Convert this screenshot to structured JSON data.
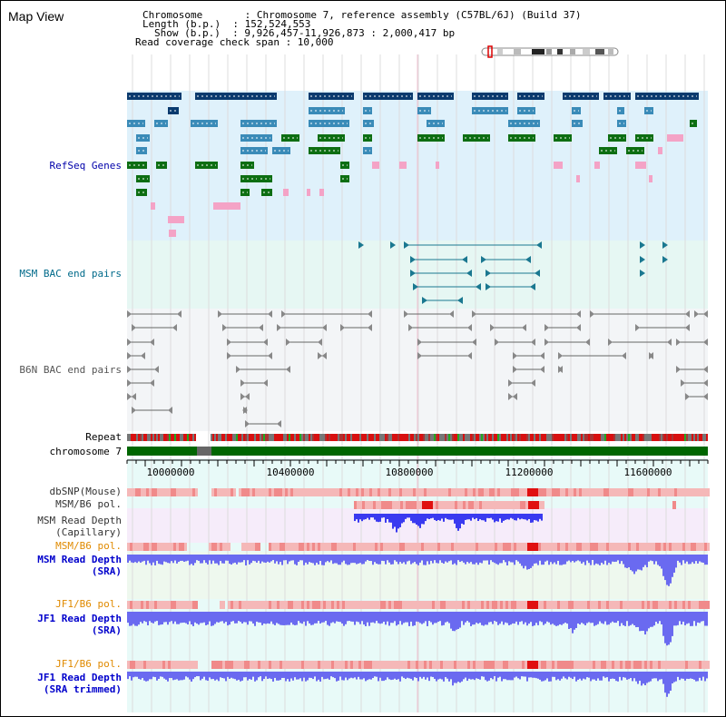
{
  "title": "Map View",
  "header": {
    "line1": "Chromosome       : Chromosome 7, reference assembly (C57BL/6J) (Build 37)",
    "line2": "Length (b.p.)  : 152,524,553",
    "line3": "Show (b.p.)  : 9,926,457-11,926,873 : 2,000,417 bp",
    "line4": "Read coverage check span : 10,000"
  },
  "axis": {
    "ticks": [
      "10000000",
      "10400000",
      "10800000",
      "11200000",
      "11600000"
    ]
  },
  "tracks": {
    "refseq": "RefSeq Genes",
    "msm_bac": "MSM BAC end pairs",
    "b6n_bac": "B6N BAC end pairs",
    "repeat": "Repeat",
    "chromosome": "chromosome 7",
    "dbsnp": "dbSNP(Mouse)",
    "msm_b6_pol_1": "MSM/B6 pol.",
    "msm_depth_cap_1": "MSM Read Depth",
    "msm_depth_cap_2": "(Capillary)",
    "msm_b6_pol_2": "MSM/B6 pol.",
    "msm_depth_sra_1": "MSM Read Depth",
    "msm_depth_sra_2": "(SRA)",
    "jf1_b6_pol_1": "JF1/B6 pol.",
    "jf1_depth_sra_1": "JF1 Read Depth",
    "jf1_depth_sra_2": "(SRA)",
    "jf1_b6_pol_2": "JF1/B6 pol.",
    "jf1_depth_trim_1": "JF1 Read Depth",
    "jf1_depth_trim_2": "(SRA trimmed)"
  },
  "colors": {
    "refseq_bg": "#dff1fb",
    "gene_dark": "#0a3a6e",
    "gene_mid": "#3a8bb8",
    "gene_green": "#0d6e12",
    "gene_pink": "#f4a3c6",
    "msm_bac": "#1a7890",
    "b6n_bac": "#666666",
    "chrom": "#006600",
    "depth": "#6a6af0",
    "pol_pink": "#f5b8b8"
  }
}
